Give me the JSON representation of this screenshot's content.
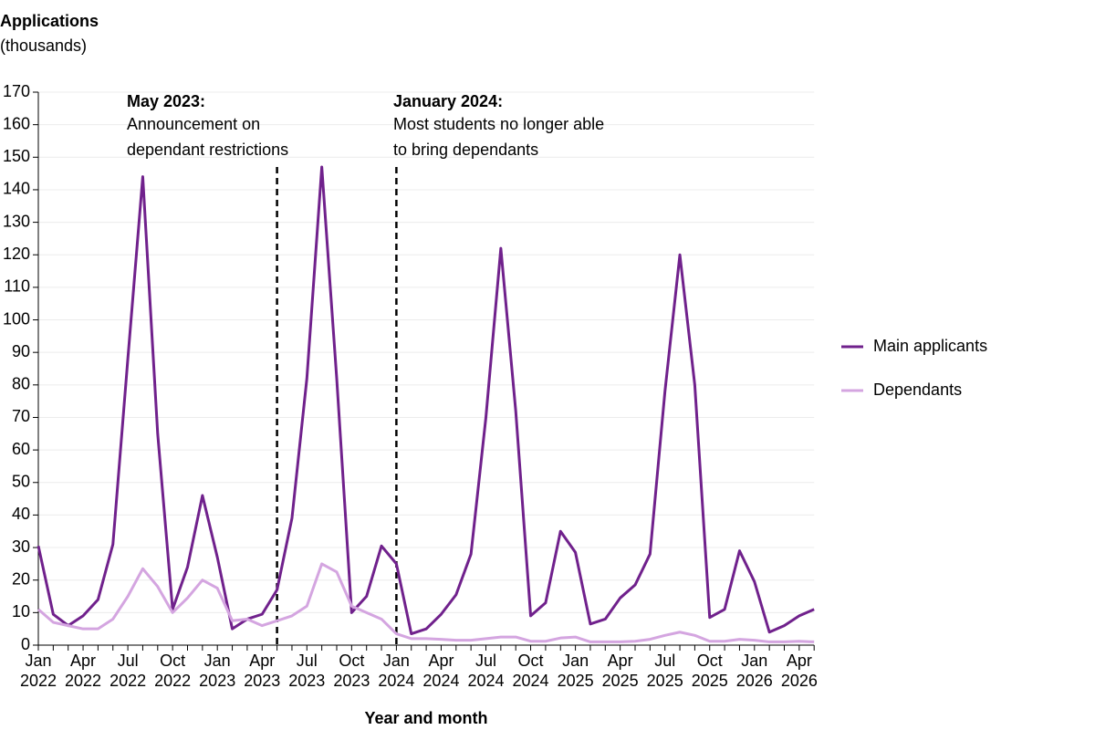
{
  "chart_data": {
    "type": "line",
    "title": "Applications",
    "subtitle": "(thousands)",
    "x_label": "Year and month",
    "categories": [
      "Jan 2022",
      null,
      null,
      "Apr 2022",
      null,
      null,
      "Jul 2022",
      null,
      null,
      "Oct 2022",
      null,
      null,
      "Jan 2023",
      null,
      null,
      "Apr 2023",
      null,
      null,
      "Jul 2023",
      null,
      null,
      "Oct 2023",
      null,
      null,
      "Jan 2024",
      null,
      null,
      "Apr 2024",
      null,
      null,
      "Jul 2024",
      null,
      null,
      "Oct 2024",
      null,
      null,
      "Jan 2025",
      null,
      null,
      "Apr 2025",
      null,
      null,
      "Jul 2025",
      null,
      null,
      "Oct 2025",
      null,
      null,
      "Jan 2026",
      null,
      null,
      "Apr 2026",
      null
    ],
    "series": [
      {
        "name": "Main applicants",
        "color": "#70218c",
        "values": [
          30.5,
          9.5,
          6,
          9,
          14,
          31,
          88,
          144,
          65,
          11,
          24,
          46,
          27,
          5,
          8,
          9.5,
          17,
          39,
          82,
          147,
          82,
          10,
          15,
          30.5,
          25,
          3.5,
          5,
          9.5,
          15.5,
          28,
          70,
          122,
          72,
          9,
          13,
          35,
          28.5,
          6.5,
          8,
          14.5,
          18.5,
          28,
          78,
          120,
          80,
          8.5,
          11,
          29,
          19.5,
          4,
          6,
          9,
          11
        ]
      },
      {
        "name": "Dependants",
        "color": "#d4a5e0",
        "values": [
          11,
          7,
          6,
          5,
          5,
          8,
          15,
          23.5,
          18,
          10,
          14.5,
          20,
          17.5,
          7.5,
          8,
          6,
          7.5,
          9,
          12,
          25,
          22.5,
          12,
          10,
          8,
          3.5,
          2,
          2,
          1.8,
          1.5,
          1.5,
          2,
          2.5,
          2.5,
          1.2,
          1.2,
          2.2,
          2.5,
          1,
          1,
          1,
          1.2,
          1.8,
          3,
          4,
          3,
          1.2,
          1.2,
          1.8,
          1.5,
          1,
          1,
          1.2,
          1
        ]
      }
    ],
    "ylim": [
      0,
      170
    ],
    "yticks": [
      0,
      10,
      20,
      30,
      40,
      50,
      60,
      70,
      80,
      90,
      100,
      110,
      120,
      130,
      140,
      150,
      160,
      170
    ],
    "grid": true,
    "legend": "right",
    "annotations": [
      {
        "title": "May 2023:",
        "lines": [
          "Announcement on",
          "dependant restrictions"
        ]
      },
      {
        "title": "January 2024:",
        "lines": [
          "Most students no longer able",
          "to bring dependants"
        ]
      }
    ]
  }
}
